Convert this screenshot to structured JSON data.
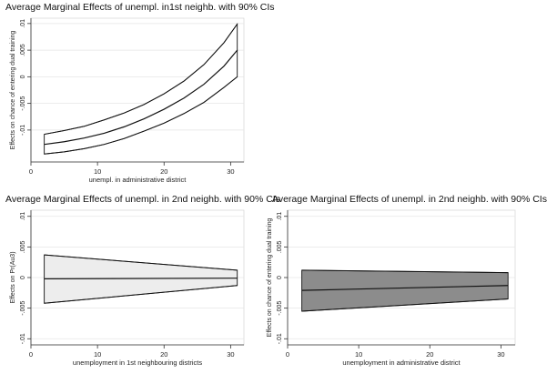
{
  "chart_data": [
    {
      "type": "line",
      "title": "Average Marginal Effects of unempl. in1st neighb. with 90% CIs",
      "xlabel": "unempl. in administrative district",
      "ylabel": "Effects on chance of entering dual training",
      "xlim": [
        0,
        32
      ],
      "ylim": [
        -0.016,
        0.011
      ],
      "xticks": [
        0,
        10,
        20,
        30
      ],
      "xtick_labels": [
        "0",
        "10",
        "20",
        "30"
      ],
      "yticks": [
        -0.01,
        -0.005,
        0,
        0.005,
        0.01
      ],
      "ytick_labels": [
        "-.01",
        "-.005",
        "0",
        ".005",
        ".01"
      ],
      "grid": true,
      "x": [
        2,
        5,
        8,
        11,
        14,
        17,
        20,
        23,
        26,
        29,
        31
      ],
      "series": [
        {
          "values": [
            -0.0108,
            -0.0101,
            -0.0093,
            -0.0081,
            -0.0068,
            -0.0052,
            -0.0032,
            -0.0008,
            0.0023,
            0.0064,
            0.0099
          ]
        },
        {
          "values": [
            -0.0127,
            -0.0122,
            -0.0115,
            -0.0106,
            -0.0094,
            -0.0079,
            -0.0061,
            -0.004,
            -0.0014,
            0.002,
            0.005
          ]
        },
        {
          "values": [
            -0.0145,
            -0.0141,
            -0.0135,
            -0.0127,
            -0.0116,
            -0.0102,
            -0.0087,
            -0.0069,
            -0.0048,
            -0.002,
            0.0
          ]
        }
      ],
      "band_fill": "#ffffff",
      "line_color": "#111111"
    },
    {
      "type": "area",
      "title": "Average Marginal Effects of unempl. in 2nd neighb. with 90% CIs",
      "xlabel": "unemployment in 1st neighbouring districts",
      "ylabel": "Effects on Pr(Au3)",
      "xlim": [
        0,
        32
      ],
      "ylim": [
        -0.011,
        0.011
      ],
      "xticks": [
        0,
        10,
        20,
        30
      ],
      "xtick_labels": [
        "0",
        "10",
        "20",
        "30"
      ],
      "yticks": [
        -0.01,
        -0.005,
        0,
        0.005,
        0.01
      ],
      "ytick_labels": [
        "-.01",
        "-.005",
        "0",
        ".005",
        ".01"
      ],
      "grid": true,
      "x": [
        2,
        31
      ],
      "series": [
        {
          "values": [
            0.0037,
            0.0012
          ]
        },
        {
          "values": [
            -0.0002,
            -0.0001
          ]
        },
        {
          "values": [
            -0.0042,
            -0.0013
          ]
        }
      ],
      "band_fill": "#ededed",
      "line_color": "#111111"
    },
    {
      "type": "area",
      "title": "Average Marginal Effects of unempl. in 2nd neighb. with 90% CIs",
      "xlabel": "unemployment in administrative district",
      "ylabel": "Effects on chance of entering dual training",
      "xlim": [
        0,
        32
      ],
      "ylim": [
        -0.011,
        0.011
      ],
      "xticks": [
        0,
        10,
        20,
        30
      ],
      "xtick_labels": [
        "0",
        "10",
        "20",
        "30"
      ],
      "yticks": [
        -0.01,
        -0.005,
        0,
        0.005,
        0.01
      ],
      "ytick_labels": [
        "-.01",
        "-.005",
        "0",
        ".005",
        ".01"
      ],
      "grid": true,
      "x": [
        2,
        31
      ],
      "series": [
        {
          "values": [
            0.0012,
            0.0008
          ]
        },
        {
          "values": [
            -0.0021,
            -0.0013
          ]
        },
        {
          "values": [
            -0.0055,
            -0.0035
          ]
        }
      ],
      "band_fill": "#8c8c8c",
      "line_color": "#111111"
    }
  ]
}
